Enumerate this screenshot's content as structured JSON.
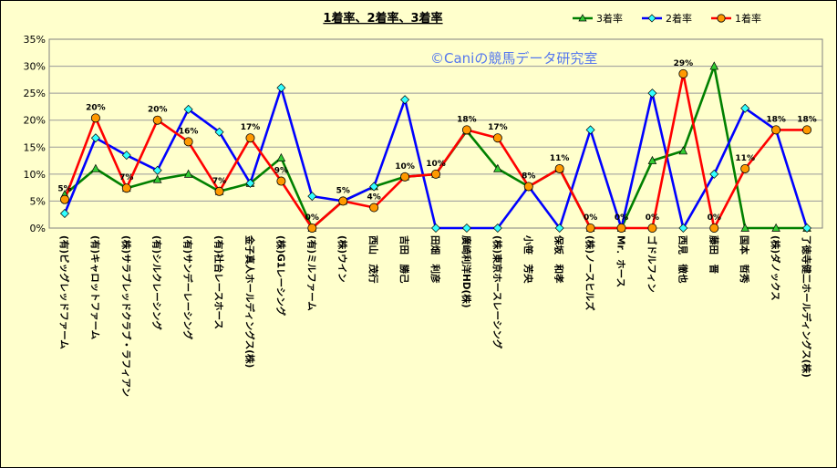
{
  "chart_data": {
    "type": "line",
    "title": "1着率、2着率、3着率",
    "watermark": "©Caniの競馬データ研究室",
    "ylim": [
      0,
      0.35
    ],
    "yticks": [
      0,
      0.05,
      0.1,
      0.15,
      0.2,
      0.25,
      0.3,
      0.35
    ],
    "ytick_labels": [
      "0%",
      "5%",
      "10%",
      "15%",
      "20%",
      "25%",
      "30%",
      "35%"
    ],
    "grid": true,
    "legend_position": "top-right",
    "categories": [
      "(有)ビッグレッドファーム",
      "(有)キャロットファーム",
      "(株)サラブレッドクラブ・ラフィアン",
      "(有)シルクレーシング",
      "(有)サンデーレーシング",
      "(有)社台レースホース",
      "金子真人ホールディングス(株)",
      "(株)G1レーシング",
      "(有)ミルファーム",
      "(株)ウイン",
      "西山　茂行",
      "吉田　勝己",
      "田畑　利彦",
      "廣崎利洋HD(株)",
      "(株)東京ホースレーシング",
      "小笹　芳央",
      "保坂　和孝",
      "(株)ノースヒルズ",
      "Mr．ホース",
      "ゴドルフィン",
      "西見　徹也",
      "藤田　晋",
      "国本　哲秀",
      "(株)ダノックス",
      "了徳寺健二ホールディングス(株)"
    ],
    "series": [
      {
        "name": "3着率",
        "color": "#008000",
        "marker": "triangle",
        "marker_color": "#33cc33",
        "values": [
          0.062,
          0.11,
          0.074,
          0.09,
          0.1,
          0.068,
          0.083,
          0.13,
          0.0,
          0.05,
          0.077,
          0.095,
          0.1,
          0.18,
          0.11,
          0.077,
          0.11,
          0.0,
          0.0,
          0.125,
          0.143,
          0.3,
          0.0,
          0.0,
          0.0
        ]
      },
      {
        "name": "2着率",
        "color": "#0000ff",
        "marker": "diamond",
        "marker_color": "#33ffff",
        "values": [
          0.027,
          0.167,
          0.135,
          0.107,
          0.22,
          0.178,
          0.083,
          0.26,
          0.059,
          0.05,
          0.077,
          0.238,
          0.0,
          0.0,
          0.0,
          0.077,
          0.0,
          0.182,
          0.0,
          0.25,
          0.0,
          0.1,
          0.222,
          0.182,
          0.0
        ]
      },
      {
        "name": "1着率",
        "color": "#ff0000",
        "marker": "circle",
        "marker_color": "#ff9900",
        "values": [
          0.053,
          0.204,
          0.074,
          0.2,
          0.16,
          0.068,
          0.167,
          0.087,
          0.0,
          0.05,
          0.038,
          0.095,
          0.1,
          0.182,
          0.167,
          0.077,
          0.11,
          0.0,
          0.0,
          0.0,
          0.286,
          0.0,
          0.11,
          0.182,
          0.182
        ],
        "data_labels": [
          "5%",
          "20%",
          "7%",
          "20%",
          "16%",
          "7%",
          "17%",
          "9%",
          "0%",
          "5%",
          "4%",
          "10%",
          "10%",
          "18%",
          "17%",
          "8%",
          "11%",
          "0%",
          "0%",
          "0%",
          "29%",
          "0%",
          "11%",
          "18%",
          "18%"
        ]
      }
    ]
  }
}
